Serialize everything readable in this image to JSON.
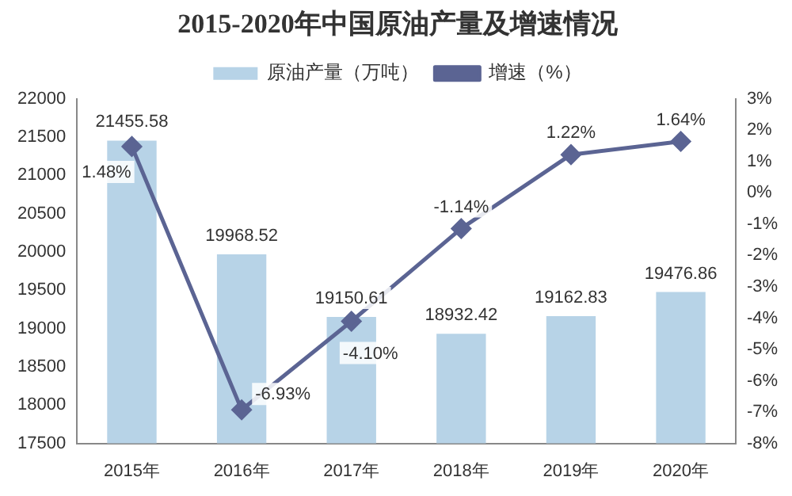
{
  "chart_data": {
    "type": "bar",
    "title": "2015-2020年中国原油产量及增速情况",
    "categories": [
      "2015年",
      "2016年",
      "2017年",
      "2018年",
      "2019年",
      "2020年"
    ],
    "series": [
      {
        "name": "原油产量（万吨）",
        "color": "#b7d3e7",
        "values": [
          21455.58,
          19968.52,
          19150.61,
          18932.42,
          19162.83,
          19476.86
        ],
        "value_labels": [
          "21455.58",
          "19968.52",
          "19150.61",
          "18932.42",
          "19162.83",
          "19476.86"
        ]
      },
      {
        "name": "增速（%）",
        "type": "line",
        "axis": "y2",
        "color": "#5b6493",
        "marker": "diamond",
        "values": [
          1.48,
          -6.93,
          -4.1,
          -1.14,
          1.22,
          1.64
        ],
        "value_labels": [
          "1.48%",
          "-6.93%",
          "-4.10%",
          "-1.14%",
          "1.22%",
          "1.64%"
        ]
      }
    ],
    "ylim": [
      17500,
      22000
    ],
    "yticks": [
      17500,
      18000,
      18500,
      19000,
      19500,
      20000,
      20500,
      21000,
      21500,
      22000
    ],
    "y2lim": [
      -8,
      3
    ],
    "y2ticks": [
      {
        "value": -8,
        "label": "-8%"
      },
      {
        "value": -7,
        "label": "-7%"
      },
      {
        "value": -6,
        "label": "-6%"
      },
      {
        "value": -5,
        "label": "-5%"
      },
      {
        "value": -4,
        "label": "-4%"
      },
      {
        "value": -3,
        "label": "-3%"
      },
      {
        "value": -2,
        "label": "-2%"
      },
      {
        "value": -1,
        "label": "-1%"
      },
      {
        "value": 0,
        "label": "0%"
      },
      {
        "value": 1,
        "label": "1%"
      },
      {
        "value": 2,
        "label": "2%"
      },
      {
        "value": 3,
        "label": "3%"
      }
    ],
    "legend": "top"
  }
}
